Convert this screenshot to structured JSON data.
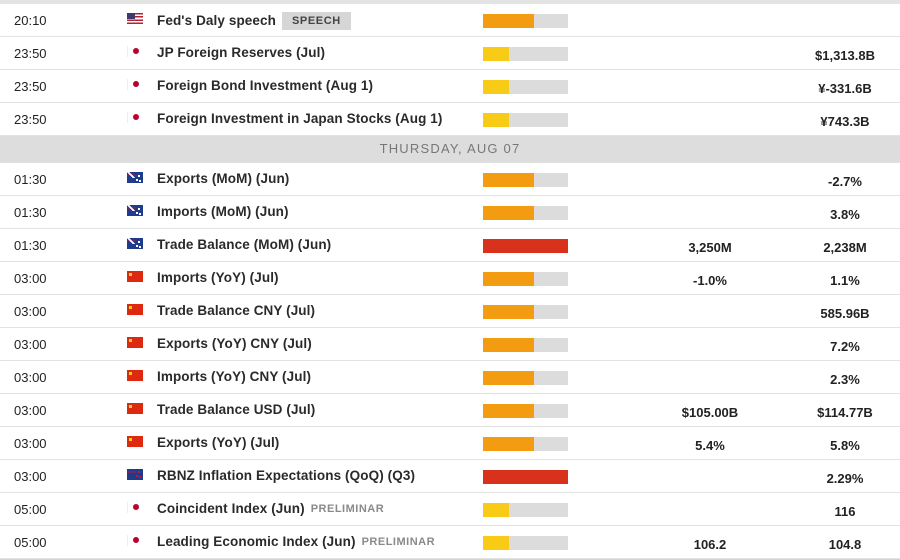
{
  "colors": {
    "impact_high": "#d9321c",
    "impact_medium": "#f39c12",
    "impact_low": "#f7cb16",
    "impact_track": "#dcdcdc",
    "day_header_bg": "#dddddd"
  },
  "rows_before": [
    {
      "time": "20:10",
      "country": "US",
      "flag_icon": "us-flag-icon",
      "event": "Fed's Daly speech",
      "tag": "SPEECH",
      "impact": "medium",
      "impact_pct": 60,
      "consensus": "",
      "previous": ""
    },
    {
      "time": "23:50",
      "country": "JP",
      "flag_icon": "japan-flag-icon",
      "event": "JP Foreign Reserves (Jul)",
      "tag": "",
      "impact": "low",
      "impact_pct": 30,
      "consensus": "",
      "previous": "$1,313.8B"
    },
    {
      "time": "23:50",
      "country": "JP",
      "flag_icon": "japan-flag-icon",
      "event": "Foreign Bond Investment (Aug 1)",
      "tag": "",
      "impact": "low",
      "impact_pct": 30,
      "consensus": "",
      "previous": "¥-331.6B"
    },
    {
      "time": "23:50",
      "country": "JP",
      "flag_icon": "japan-flag-icon",
      "event": "Foreign Investment in Japan Stocks (Aug 1)",
      "tag": "",
      "impact": "low",
      "impact_pct": 30,
      "consensus": "",
      "previous": "¥743.3B"
    }
  ],
  "day_header": "THURSDAY, AUG 07",
  "rows_after": [
    {
      "time": "01:30",
      "country": "AU",
      "flag_icon": "australia-flag-icon",
      "event": "Exports (MoM) (Jun)",
      "tag": "",
      "impact": "medium",
      "impact_pct": 60,
      "consensus": "",
      "previous": "-2.7%"
    },
    {
      "time": "01:30",
      "country": "AU",
      "flag_icon": "australia-flag-icon",
      "event": "Imports (MoM) (Jun)",
      "tag": "",
      "impact": "medium",
      "impact_pct": 60,
      "consensus": "",
      "previous": "3.8%"
    },
    {
      "time": "01:30",
      "country": "AU",
      "flag_icon": "australia-flag-icon",
      "event": "Trade Balance (MoM) (Jun)",
      "tag": "",
      "impact": "high",
      "impact_pct": 100,
      "consensus": "3,250M",
      "previous": "2,238M"
    },
    {
      "time": "03:00",
      "country": "CN",
      "flag_icon": "china-flag-icon",
      "event": "Imports (YoY) (Jul)",
      "tag": "",
      "impact": "medium",
      "impact_pct": 60,
      "consensus": "-1.0%",
      "previous": "1.1%"
    },
    {
      "time": "03:00",
      "country": "CN",
      "flag_icon": "china-flag-icon",
      "event": "Trade Balance CNY (Jul)",
      "tag": "",
      "impact": "medium",
      "impact_pct": 60,
      "consensus": "",
      "previous": "585.96B"
    },
    {
      "time": "03:00",
      "country": "CN",
      "flag_icon": "china-flag-icon",
      "event": "Exports (YoY) CNY (Jul)",
      "tag": "",
      "impact": "medium",
      "impact_pct": 60,
      "consensus": "",
      "previous": "7.2%"
    },
    {
      "time": "03:00",
      "country": "CN",
      "flag_icon": "china-flag-icon",
      "event": "Imports (YoY) CNY (Jul)",
      "tag": "",
      "impact": "medium",
      "impact_pct": 60,
      "consensus": "",
      "previous": "2.3%"
    },
    {
      "time": "03:00",
      "country": "CN",
      "flag_icon": "china-flag-icon",
      "event": "Trade Balance USD (Jul)",
      "tag": "",
      "impact": "medium",
      "impact_pct": 60,
      "consensus": "$105.00B",
      "previous": "$114.77B"
    },
    {
      "time": "03:00",
      "country": "CN",
      "flag_icon": "china-flag-icon",
      "event": "Exports (YoY) (Jul)",
      "tag": "",
      "impact": "medium",
      "impact_pct": 60,
      "consensus": "5.4%",
      "previous": "5.8%"
    },
    {
      "time": "03:00",
      "country": "NZ",
      "flag_icon": "new-zealand-flag-icon",
      "event": "RBNZ Inflation Expectations (QoQ) (Q3)",
      "tag": "",
      "impact": "high",
      "impact_pct": 100,
      "consensus": "",
      "previous": "2.29%"
    },
    {
      "time": "05:00",
      "country": "JP",
      "flag_icon": "japan-flag-icon",
      "event": "Coincident Index (Jun)",
      "tag": "PRELIMINAR",
      "impact": "low",
      "impact_pct": 30,
      "consensus": "",
      "previous": "116"
    },
    {
      "time": "05:00",
      "country": "JP",
      "flag_icon": "japan-flag-icon",
      "event": "Leading Economic Index (Jun)",
      "tag": "PRELIMINAR",
      "impact": "low",
      "impact_pct": 30,
      "consensus": "106.2",
      "previous": "104.8"
    }
  ]
}
